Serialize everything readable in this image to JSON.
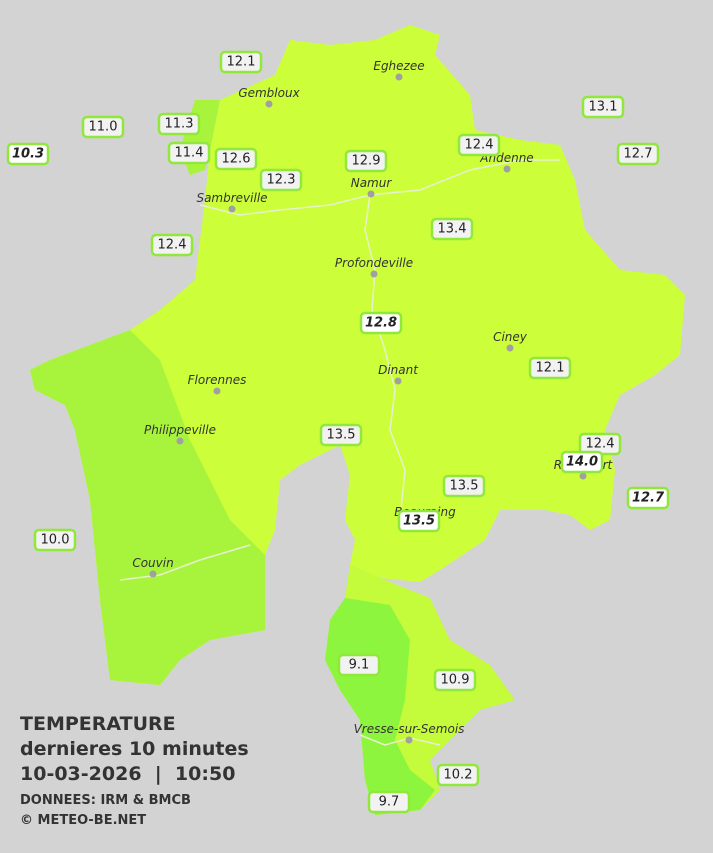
{
  "caption": {
    "title": "TEMPERATURE",
    "subtitle": "dernieres 10 minutes",
    "timestamp": "10-03-2026  |  10:50",
    "source": "DONNEES: IRM & BMCB",
    "copyright": "© METEO-BE.NET"
  },
  "towns": [
    "Eghezee",
    "Gembloux",
    "Andenne",
    "Namur",
    "Sambreville",
    "Profondeville",
    "Ciney",
    "Dinant",
    "Florennes",
    "Philippeville",
    "Rochefort",
    "Beauraing",
    "Couvin",
    "Vresse-sur-Semois"
  ],
  "stations": [
    "12.1",
    "11.0",
    "11.3",
    "10.3",
    "11.4",
    "12.6",
    "12.3",
    "12.9",
    "12.4",
    "13.1",
    "12.7",
    "12.4",
    "13.4",
    "12.8",
    "12.1",
    "13.5",
    "12.4",
    "14.0",
    "12.7",
    "13.5",
    "13.5",
    "10.0",
    "9.1",
    "10.9",
    "10.2",
    "9.7"
  ]
}
